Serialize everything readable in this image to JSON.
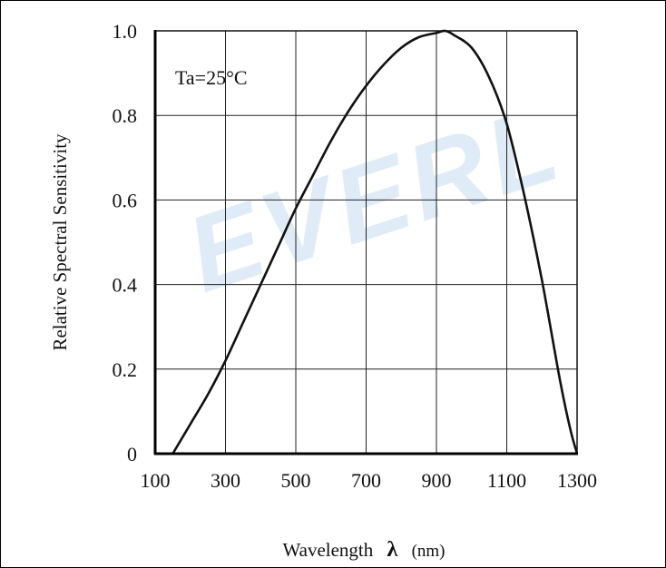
{
  "chart_data": {
    "type": "line",
    "xlabel": "Wavelength λ (nm)",
    "xlabel_main": "Wavelength",
    "xlabel_symbol": "λ",
    "xlabel_unit": "(nm)",
    "ylabel": "Relative Spectral Sensitivity",
    "annotation": "Ta=25°C",
    "watermark": "EVERL",
    "watermark_color": "#3a86d0",
    "xlim": [
      100,
      1300
    ],
    "ylim": [
      0,
      1.0
    ],
    "x_ticks": [
      100,
      300,
      500,
      700,
      900,
      1100,
      1300
    ],
    "x_tick_labels": [
      "100",
      "300",
      "500",
      "700",
      "900",
      "1100",
      "1300"
    ],
    "y_ticks": [
      0,
      0.2,
      0.4,
      0.6,
      0.8,
      1.0
    ],
    "y_tick_labels": [
      "0",
      "0.2",
      "0.4",
      "0.6",
      "0.8",
      "1.0"
    ],
    "grid": true,
    "series": [
      {
        "x": [
          150,
          200,
          250,
          300,
          350,
          400,
          450,
          500,
          550,
          600,
          650,
          700,
          750,
          800,
          850,
          900,
          925,
          950,
          1000,
          1050,
          1100,
          1150,
          1200,
          1250,
          1280,
          1300
        ],
        "y": [
          0.0,
          0.07,
          0.14,
          0.22,
          0.31,
          0.4,
          0.49,
          0.58,
          0.66,
          0.74,
          0.81,
          0.87,
          0.92,
          0.96,
          0.985,
          0.995,
          1.0,
          0.99,
          0.96,
          0.89,
          0.78,
          0.61,
          0.41,
          0.18,
          0.06,
          0.0
        ],
        "color": "#111111"
      }
    ]
  }
}
